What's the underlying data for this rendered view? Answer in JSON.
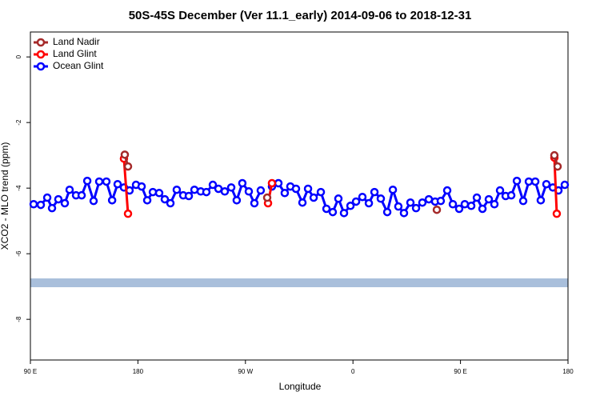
{
  "chart_data": {
    "type": "line",
    "title": "50S-45S December (Ver 11.1_early)   2014-09-06 to 2018-12-31",
    "x_label": "Longitude",
    "y_label": "XCO2 - MLO trend (ppm)",
    "xlim": [
      90,
      540
    ],
    "ylim": [
      -9.24,
      0.76
    ],
    "xticks": [
      {
        "value": 90,
        "label": "90 E"
      },
      {
        "value": 180,
        "label": "180"
      },
      {
        "value": 270,
        "label": "90 W"
      },
      {
        "value": 360,
        "label": "0"
      },
      {
        "value": 450,
        "label": "90 E"
      },
      {
        "value": 540,
        "label": "180"
      }
    ],
    "yticks": [
      0,
      -2,
      -4,
      -6,
      -8
    ],
    "legend": "top-left",
    "series": [
      {
        "name": "Land Nadir",
        "color": "#a52a2a",
        "x": [
          169.0,
          171.7,
          null,
          288.2,
          null,
          430.2,
          null,
          528.6,
          531.3
        ],
        "values": [
          -2.98,
          -3.34,
          null,
          -4.29,
          null,
          -4.66,
          null,
          -3.0,
          -3.34
        ]
      },
      {
        "name": "Land Glint",
        "color": "#ff0000",
        "x": [
          168.3,
          171.7,
          null,
          288.9,
          292.2,
          null,
          528.6,
          530.6
        ],
        "values": [
          -3.1,
          -4.78,
          null,
          -4.46,
          -3.85,
          null,
          -3.07,
          -4.78
        ]
      },
      {
        "name": "Ocean Glint",
        "color": "#0000ff",
        "x": [
          92.7,
          98.7,
          104.1,
          108.1,
          113.4,
          118.8,
          122.8,
          128.2,
          132.9,
          137.6,
          142.9,
          147.6,
          153.6,
          158.4,
          163.0,
          168.3,
          173.0,
          178.4,
          183.1,
          187.8,
          192.5,
          197.8,
          202.5,
          207.2,
          212.5,
          217.9,
          222.6,
          227.3,
          232.6,
          237.3,
          242.7,
          247.4,
          252.7,
          258.1,
          262.7,
          267.4,
          272.8,
          277.5,
          282.8,
          null,
          292.2,
          297.6,
          302.9,
          307.6,
          312.3,
          317.7,
          322.4,
          327.1,
          333.1,
          337.8,
          343.1,
          347.8,
          352.5,
          357.9,
          362.6,
          367.9,
          373.3,
          378.0,
          383.3,
          388.7,
          393.4,
          398.0,
          402.7,
          408.1,
          412.8,
          418.1,
          423.5,
          428.8,
          433.5,
          438.9,
          443.6,
          448.9,
          453.6,
          459.0,
          463.7,
          468.4,
          473.7,
          478.4,
          483.1,
          487.8,
          492.5,
          497.2,
          502.5,
          507.2,
          512.6,
          517.2,
          521.9,
          527.3,
          532.0,
          537.3
        ],
        "values": [
          -4.49,
          -4.51,
          -4.29,
          -4.61,
          -4.34,
          -4.46,
          -4.05,
          -4.22,
          -4.22,
          -3.78,
          -4.39,
          -3.8,
          -3.8,
          -4.37,
          -3.88,
          -3.98,
          -4.07,
          -3.9,
          -3.95,
          -4.37,
          -4.12,
          -4.15,
          -4.34,
          -4.46,
          -4.05,
          -4.22,
          -4.24,
          -4.05,
          -4.1,
          -4.12,
          -3.9,
          -4.02,
          -4.1,
          -3.98,
          -4.37,
          -3.85,
          -4.1,
          -4.46,
          -4.07,
          null,
          -3.95,
          -3.85,
          -4.15,
          -3.95,
          -4.02,
          -4.44,
          -4.02,
          -4.29,
          -4.12,
          -4.63,
          -4.73,
          -4.32,
          -4.76,
          -4.54,
          -4.41,
          -4.27,
          -4.46,
          -4.12,
          -4.32,
          -4.73,
          -4.05,
          -4.56,
          -4.76,
          -4.44,
          -4.61,
          -4.44,
          -4.34,
          -4.41,
          -4.39,
          -4.07,
          -4.49,
          -4.63,
          -4.49,
          -4.54,
          -4.29,
          -4.63,
          -4.34,
          -4.49,
          -4.07,
          -4.24,
          -4.22,
          -3.78,
          -4.39,
          -3.8,
          -3.8,
          -4.37,
          -3.88,
          -3.98,
          -4.07,
          -3.9
        ]
      }
    ]
  }
}
